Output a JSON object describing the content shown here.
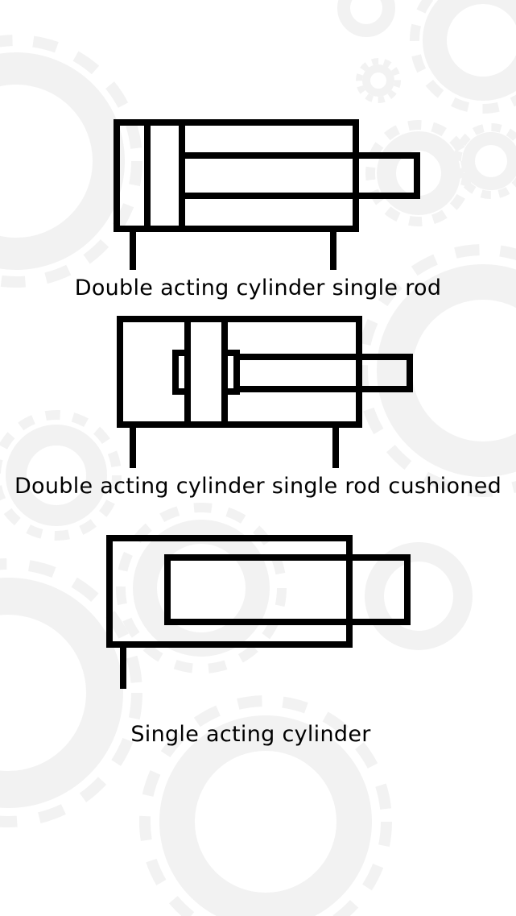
{
  "colors": {
    "background": "#ffffff",
    "symbol_stroke": "#000000",
    "gear_watermark": "#f3f3f3"
  },
  "symbols": [
    {
      "id": "double-acting-single-rod",
      "caption": "Double acting cylinder single rod"
    },
    {
      "id": "double-acting-single-rod-cushioned",
      "caption": "Double acting cylinder single rod cushioned"
    },
    {
      "id": "single-acting",
      "caption": "Single acting cylinder"
    }
  ]
}
